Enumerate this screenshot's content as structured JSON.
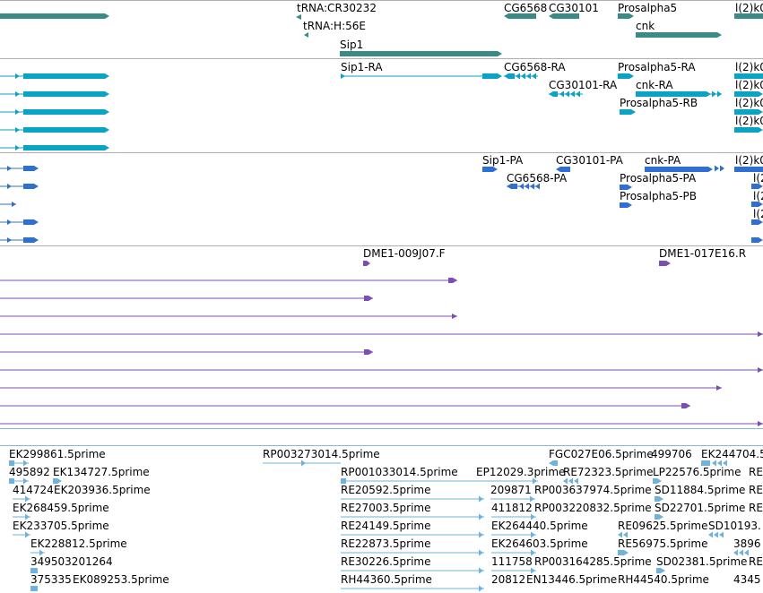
{
  "colors": {
    "gene": "#3a8a85",
    "mrna": "#0aa3c4",
    "protein": "#2f6fd2",
    "est": "#7b4fb0",
    "cdna": "#6fb3dc",
    "divider": "#b0b0b0",
    "divider_blue": "#8ab6d8"
  },
  "tracks": {
    "genes": [
      {
        "label": "tRNA:CR30232"
      },
      {
        "label": "tRNA:H:56E"
      },
      {
        "label": "Sip1"
      },
      {
        "label": "CG6568"
      },
      {
        "label": "CG30101"
      },
      {
        "label": "Prosalpha5"
      },
      {
        "label": "cnk"
      },
      {
        "label": "l(2)k0"
      }
    ],
    "mrna": [
      {
        "label": "Sip1-RA"
      },
      {
        "label": "CG6568-RA"
      },
      {
        "label": "CG30101-RA"
      },
      {
        "label": "Prosalpha5-RA"
      },
      {
        "label": "cnk-RA"
      },
      {
        "label": "Prosalpha5-RB"
      },
      {
        "label": "l(2)k0"
      },
      {
        "label": "l(2)k0"
      },
      {
        "label": "l(2)k0"
      }
    ],
    "protein": [
      {
        "label": "Sip1-PA"
      },
      {
        "label": "CG30101-PA"
      },
      {
        "label": "cnk-PA"
      },
      {
        "label": "l(2)k0"
      },
      {
        "label": "CG6568-PA"
      },
      {
        "label": "Prosalpha5-PA"
      },
      {
        "label": "Prosalpha5-PB"
      },
      {
        "label": "l(2"
      },
      {
        "label": "l(2"
      },
      {
        "label": "l(2"
      }
    ],
    "est": [
      {
        "label": "DME1-009J07.F"
      },
      {
        "label": "DME1-017E16.R"
      }
    ],
    "cdna": [
      {
        "label": "EK299861.5prime"
      },
      {
        "label": "RP003273014.5prime"
      },
      {
        "label": "FGC027E06.5prime"
      },
      {
        "label": "499706"
      },
      {
        "label": "EK244704.5"
      },
      {
        "label": "495892"
      },
      {
        "label": "EK134727.5prime"
      },
      {
        "label": "RP001033014.5prime"
      },
      {
        "label": "EP12029.3prime"
      },
      {
        "label": "RE72323.5prime"
      },
      {
        "label": "LP22576.5prime"
      },
      {
        "label": "RE"
      },
      {
        "label": "414724"
      },
      {
        "label": "EK203936.5prime"
      },
      {
        "label": "RE20592.5prime"
      },
      {
        "label": "209871"
      },
      {
        "label": "RP003637974.5prime"
      },
      {
        "label": "SD11884.5prime"
      },
      {
        "label": "RE"
      },
      {
        "label": "EK268459.5prime"
      },
      {
        "label": "RE27003.5prime"
      },
      {
        "label": "411812"
      },
      {
        "label": "RP003220832.5prime"
      },
      {
        "label": "SD22701.5prime"
      },
      {
        "label": "RE"
      },
      {
        "label": "EK233705.5prime"
      },
      {
        "label": "RE24149.5prime"
      },
      {
        "label": "EK264440.5prime"
      },
      {
        "label": "RE09625.5prime"
      },
      {
        "label": "SD10193."
      },
      {
        "label": "EK228812.5prime"
      },
      {
        "label": "RE22873.5prime"
      },
      {
        "label": "EK264603.5prime"
      },
      {
        "label": "RE56975.5prime"
      },
      {
        "label": "3896"
      },
      {
        "label": "349503201264"
      },
      {
        "label": "RE30226.5prime"
      },
      {
        "label": "111758"
      },
      {
        "label": "RP003164285.5prime"
      },
      {
        "label": "SD02381.5prime"
      },
      {
        "label": "RE"
      },
      {
        "label": "375335"
      },
      {
        "label": "EK089253.5prime"
      },
      {
        "label": "RH44360.5prime"
      },
      {
        "label": "20812"
      },
      {
        "label": "EN13446.5prime"
      },
      {
        "label": "RH44540.5prime"
      },
      {
        "label": "4345"
      }
    ]
  }
}
